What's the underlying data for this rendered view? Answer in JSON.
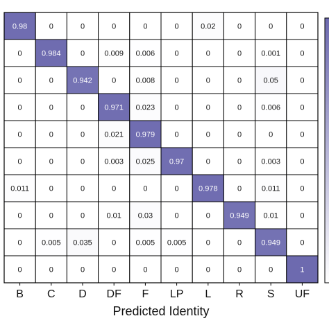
{
  "chart_data": {
    "type": "heatmap",
    "xlabel": "Predicted Identity",
    "x_categories": [
      "B",
      "C",
      "D",
      "DF",
      "F",
      "LP",
      "L",
      "R",
      "S",
      "UF"
    ],
    "values": [
      [
        0.98,
        0,
        0,
        0,
        0,
        0,
        0.02,
        0,
        0,
        0
      ],
      [
        0,
        0.984,
        0,
        0.009,
        0.006,
        0,
        0,
        0,
        0.001,
        0
      ],
      [
        0,
        0,
        0.942,
        0,
        0.008,
        0,
        0,
        0,
        0.05,
        0
      ],
      [
        0,
        0,
        0,
        0.971,
        0.023,
        0,
        0,
        0,
        0.006,
        0
      ],
      [
        0,
        0,
        0,
        0.021,
        0.979,
        0,
        0,
        0,
        0,
        0
      ],
      [
        0,
        0,
        0,
        0.003,
        0.025,
        0.97,
        0,
        0,
        0.003,
        0
      ],
      [
        0.011,
        0,
        0,
        0,
        0,
        0,
        0.978,
        0,
        0.011,
        0
      ],
      [
        0,
        0,
        0,
        0.01,
        0.03,
        0,
        0,
        0.949,
        0.01,
        0
      ],
      [
        0,
        0.005,
        0.035,
        0,
        0.005,
        0.005,
        0,
        0,
        0.949,
        0
      ],
      [
        0,
        0,
        0,
        0,
        0,
        0,
        0,
        0,
        0,
        1
      ]
    ],
    "color_low": "#ffffff",
    "color_high": "#6d6aaf",
    "colorbar_visible": true
  }
}
